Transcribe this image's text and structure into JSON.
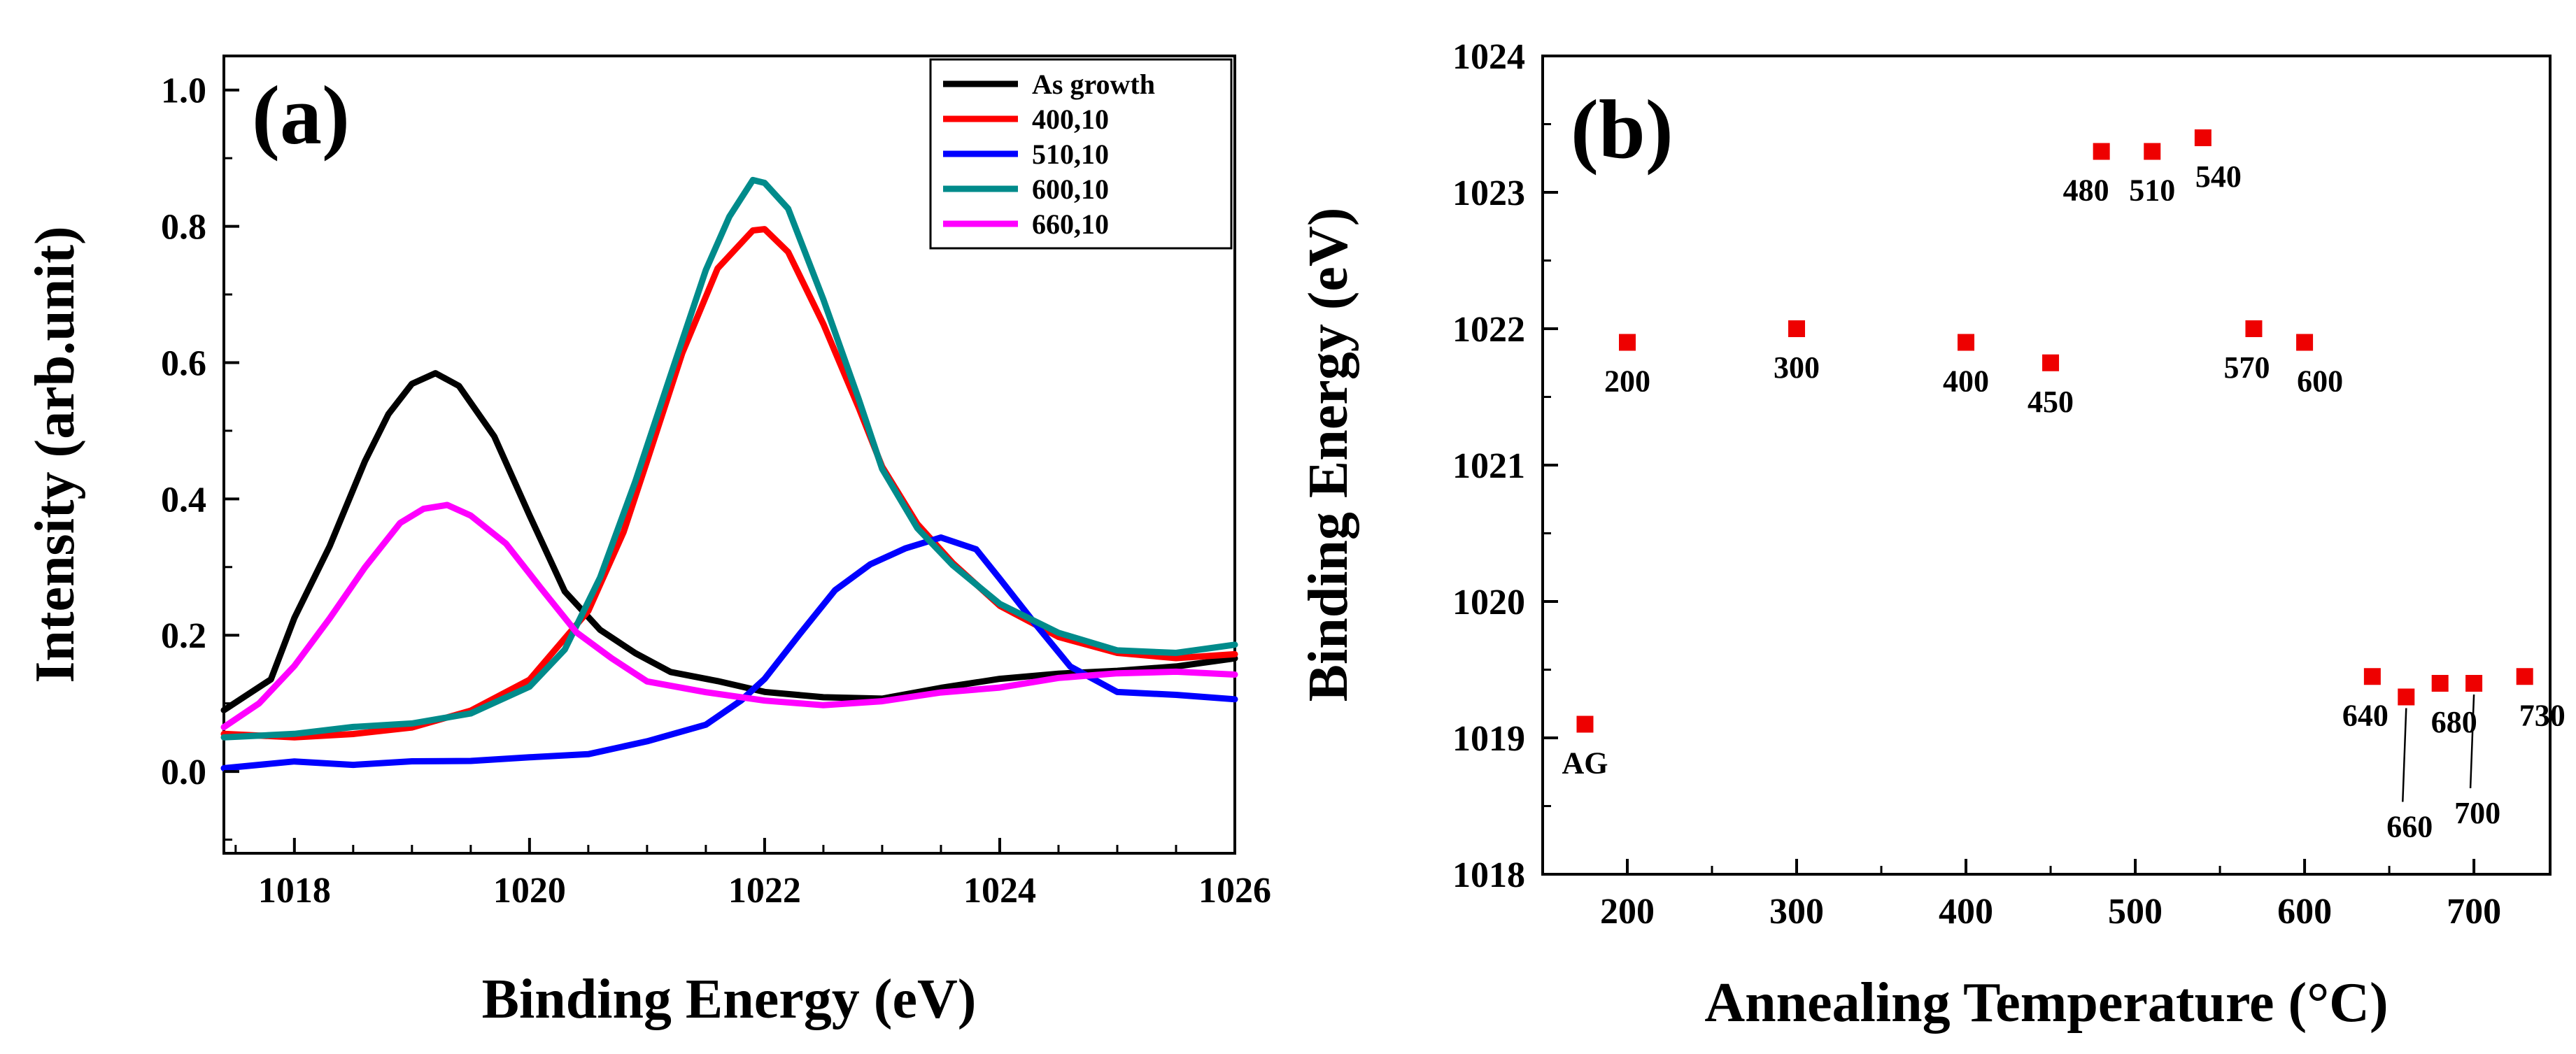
{
  "chart_data": [
    {
      "panel": "(a)",
      "type": "line",
      "xlabel": "Binding Energy (eV)",
      "ylabel": "Intensity (arb.unit)",
      "xlim": [
        1017.4,
        1026
      ],
      "ylim": [
        -0.12,
        1.05
      ],
      "xticks": [
        1018,
        1020,
        1022,
        1024,
        1026
      ],
      "yticks": [
        0.0,
        0.2,
        0.4,
        0.6,
        0.8,
        1.0
      ],
      "xtick_labels": [
        "1018",
        "1020",
        "1022",
        "1024",
        "1026"
      ],
      "ytick_labels": [
        "0.0",
        "0.2",
        "0.4",
        "0.6",
        "0.8",
        "1.0"
      ],
      "legend_position": "top-right",
      "series": [
        {
          "name": "As growth",
          "color": "#000000",
          "x": [
            1017.4,
            1017.8,
            1018.0,
            1018.3,
            1018.6,
            1018.8,
            1019.0,
            1019.2,
            1019.4,
            1019.7,
            1020.0,
            1020.3,
            1020.6,
            1020.9,
            1021.2,
            1021.6,
            1022.0,
            1022.5,
            1023.0,
            1023.5,
            1024.0,
            1024.5,
            1025.0,
            1025.5,
            1026.0
          ],
          "values": [
            0.09,
            0.13,
            0.22,
            0.33,
            0.46,
            0.53,
            0.57,
            0.58,
            0.56,
            0.49,
            0.38,
            0.27,
            0.21,
            0.17,
            0.14,
            0.13,
            0.12,
            0.115,
            0.11,
            0.12,
            0.13,
            0.14,
            0.15,
            0.16,
            0.17
          ]
        },
        {
          "name": "400,10",
          "color": "#ff0000",
          "x": [
            1017.4,
            1018.0,
            1018.5,
            1019.0,
            1019.5,
            1020.0,
            1020.5,
            1020.8,
            1021.0,
            1021.3,
            1021.6,
            1021.9,
            1022.0,
            1022.2,
            1022.5,
            1022.8,
            1023.0,
            1023.3,
            1023.6,
            1024.0,
            1024.5,
            1025.0,
            1025.5,
            1026.0
          ],
          "values": [
            0.05,
            0.05,
            0.06,
            0.07,
            0.09,
            0.13,
            0.23,
            0.35,
            0.46,
            0.62,
            0.74,
            0.79,
            0.79,
            0.76,
            0.66,
            0.54,
            0.45,
            0.36,
            0.3,
            0.24,
            0.2,
            0.18,
            0.17,
            0.17
          ]
        },
        {
          "name": "510,10",
          "color": "#0000ff",
          "x": [
            1017.4,
            1018.0,
            1018.5,
            1019.0,
            1019.5,
            1020.0,
            1020.5,
            1021.0,
            1021.5,
            1021.8,
            1022.0,
            1022.3,
            1022.6,
            1022.9,
            1023.2,
            1023.5,
            1023.8,
            1024.0,
            1024.3,
            1024.6,
            1025.0,
            1025.5,
            1026.0
          ],
          "values": [
            0.01,
            0.02,
            0.01,
            0.01,
            0.01,
            0.02,
            0.03,
            0.05,
            0.07,
            0.1,
            0.13,
            0.2,
            0.27,
            0.31,
            0.33,
            0.34,
            0.32,
            0.28,
            0.22,
            0.16,
            0.12,
            0.11,
            0.1
          ]
        },
        {
          "name": "600,10",
          "color": "#008b8b",
          "x": [
            1017.4,
            1018.0,
            1018.5,
            1019.0,
            1019.5,
            1020.0,
            1020.3,
            1020.6,
            1020.9,
            1021.2,
            1021.5,
            1021.7,
            1021.9,
            1022.0,
            1022.2,
            1022.5,
            1022.8,
            1023.0,
            1023.3,
            1023.6,
            1024.0,
            1024.5,
            1025.0,
            1025.5,
            1026.0
          ],
          "values": [
            0.05,
            0.05,
            0.06,
            0.07,
            0.09,
            0.13,
            0.18,
            0.28,
            0.42,
            0.58,
            0.74,
            0.82,
            0.87,
            0.86,
            0.82,
            0.69,
            0.55,
            0.45,
            0.36,
            0.3,
            0.24,
            0.2,
            0.18,
            0.18,
            0.19
          ]
        },
        {
          "name": "660,10",
          "color": "#ff00ff",
          "x": [
            1017.4,
            1017.7,
            1018.0,
            1018.3,
            1018.6,
            1018.9,
            1019.1,
            1019.3,
            1019.5,
            1019.8,
            1020.1,
            1020.4,
            1020.7,
            1021.0,
            1021.5,
            1022.0,
            1022.5,
            1023.0,
            1023.5,
            1024.0,
            1024.5,
            1025.0,
            1025.5,
            1026.0
          ],
          "values": [
            0.06,
            0.1,
            0.16,
            0.23,
            0.3,
            0.36,
            0.38,
            0.39,
            0.38,
            0.34,
            0.27,
            0.2,
            0.16,
            0.13,
            0.12,
            0.11,
            0.1,
            0.1,
            0.11,
            0.12,
            0.14,
            0.15,
            0.15,
            0.14
          ]
        }
      ]
    },
    {
      "panel": "(b)",
      "type": "scatter",
      "xlabel": "Annealing Temperature (°C)",
      "ylabel": "Binding Energy (eV)",
      "xlim": [
        150,
        745
      ],
      "ylim": [
        1018,
        1024
      ],
      "xticks": [
        200,
        300,
        400,
        500,
        600,
        700
      ],
      "yticks": [
        1018,
        1019,
        1020,
        1021,
        1022,
        1023,
        1024
      ],
      "xtick_labels": [
        "200",
        "300",
        "400",
        "500",
        "600",
        "700"
      ],
      "ytick_labels": [
        "1018",
        "1019",
        "1020",
        "1021",
        "1022",
        "1023",
        "1024"
      ],
      "marker_color": "#ee0000",
      "points": [
        {
          "label": "AG",
          "x": 175,
          "y": 1019.1
        },
        {
          "label": "200",
          "x": 200,
          "y": 1021.9
        },
        {
          "label": "300",
          "x": 300,
          "y": 1022.0
        },
        {
          "label": "400",
          "x": 400,
          "y": 1021.9
        },
        {
          "label": "450",
          "x": 450,
          "y": 1021.75
        },
        {
          "label": "480",
          "x": 480,
          "y": 1023.3
        },
        {
          "label": "510",
          "x": 510,
          "y": 1023.3
        },
        {
          "label": "540",
          "x": 540,
          "y": 1023.4
        },
        {
          "label": "570",
          "x": 570,
          "y": 1022.0
        },
        {
          "label": "600",
          "x": 600,
          "y": 1021.9
        },
        {
          "label": "640",
          "x": 640,
          "y": 1019.45
        },
        {
          "label": "660",
          "x": 660,
          "y": 1019.3
        },
        {
          "label": "680",
          "x": 680,
          "y": 1019.4
        },
        {
          "label": "700",
          "x": 700,
          "y": 1019.4
        },
        {
          "label": "730",
          "x": 730,
          "y": 1019.45
        }
      ]
    }
  ]
}
